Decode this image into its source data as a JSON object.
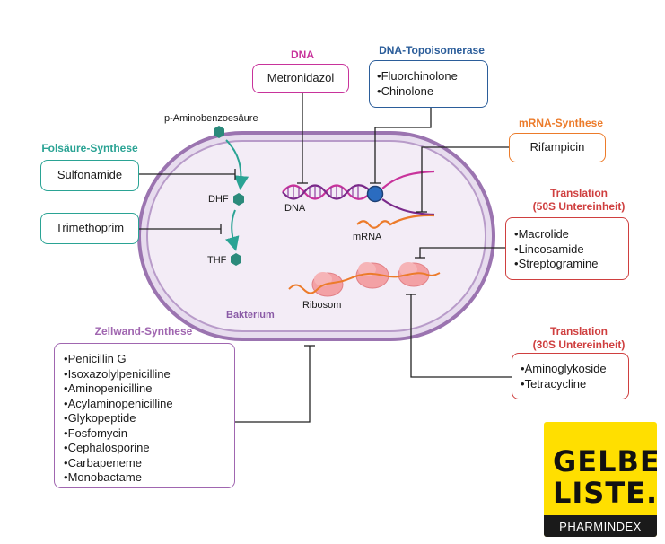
{
  "headers": {
    "dna": "DNA",
    "topo": "DNA-Topoisomerase",
    "mrna_synth": "mRNA-Synthese",
    "folate": "Folsäure-Synthese",
    "trans50": "Translation\n(50S Untereinheit)",
    "trans30": "Translation\n(30S Untereinheit)",
    "cellwall": "Zellwand-Synthese"
  },
  "drugs": {
    "metronidazol": "Metronidazol",
    "topo": [
      "Fluorchinolone",
      "Chinolone"
    ],
    "rifampicin": "Rifampicin",
    "sulfonamide": "Sulfonamide",
    "trimethoprim": "Trimethoprim",
    "trans50": [
      "Macrolide",
      "Lincosamide",
      "Streptogramine"
    ],
    "trans30": [
      "Aminoglykoside",
      "Tetracycline"
    ],
    "cellwall": [
      "Penicillin G",
      "Isoxazolylpenicilline",
      "Aminopenicilline",
      "Acylaminopenicilline",
      "Glykopeptide",
      "Fosfomycin",
      "Cephalosporine",
      "Carbapeneme",
      "Monobactame"
    ]
  },
  "labels": {
    "paba": "p-Aminobenzoesäure",
    "dhf": "DHF",
    "thf": "THF",
    "dna": "DNA",
    "mrna": "mRNA",
    "ribosom": "Ribosom",
    "bakterium": "Bakterium"
  },
  "logo": {
    "line1": "GELBE",
    "line2": "LISTE.",
    "sub": "PHARMINDEX"
  },
  "colors": {
    "dna": "#c8339b",
    "topo": "#2b5d9a",
    "mrna": "#ec7b2a",
    "folate": "#2aa394",
    "translation": "#cf3f3f",
    "cellwall": "#a066b0",
    "membrane": "#9b74b0",
    "cytoplasm": "#f1e8f4"
  }
}
